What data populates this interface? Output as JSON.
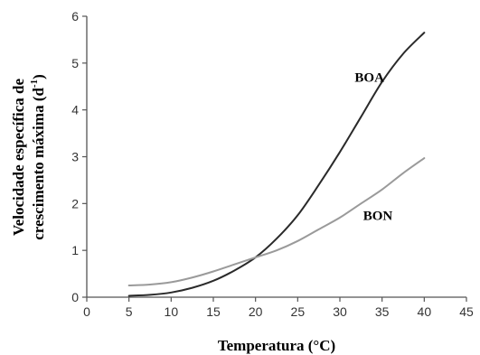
{
  "chart_data": {
    "type": "line",
    "xlabel": "Temperatura (°C)",
    "ylabel_line1": "Velocidade específica de",
    "ylabel_line2_prefix": "crescimento máxima (d",
    "ylabel_line2_sup": "-1",
    "ylabel_line2_suffix": ")",
    "xlim": [
      0,
      45
    ],
    "ylim": [
      0,
      6
    ],
    "xticks": [
      "0",
      "5",
      "10",
      "15",
      "20",
      "25",
      "30",
      "35",
      "40",
      "45"
    ],
    "yticks": [
      "0",
      "1",
      "2",
      "3",
      "4",
      "5",
      "6"
    ],
    "grid": false,
    "series": [
      {
        "name": "BOA",
        "color": "#2a2a2a",
        "x": [
          5,
          7.5,
          10,
          12.5,
          15,
          17.5,
          20,
          22.5,
          25,
          27.5,
          30,
          32.5,
          35,
          37.5,
          40
        ],
        "y": [
          0.03,
          0.05,
          0.1,
          0.2,
          0.35,
          0.57,
          0.85,
          1.25,
          1.75,
          2.4,
          3.1,
          3.85,
          4.6,
          5.2,
          5.65
        ]
      },
      {
        "name": "BON",
        "color": "#9a9a9a",
        "x": [
          5,
          7.5,
          10,
          12.5,
          15,
          17.5,
          20,
          22.5,
          25,
          27.5,
          30,
          32.5,
          35,
          37.5,
          40
        ],
        "y": [
          0.25,
          0.27,
          0.32,
          0.42,
          0.55,
          0.7,
          0.85,
          1.0,
          1.2,
          1.45,
          1.7,
          2.0,
          2.3,
          2.65,
          2.97
        ]
      }
    ],
    "labels": [
      {
        "text": "BOA",
        "x": 33.5,
        "y": 4.6
      },
      {
        "text": "BON",
        "x": 34.5,
        "y": 1.65
      }
    ]
  }
}
